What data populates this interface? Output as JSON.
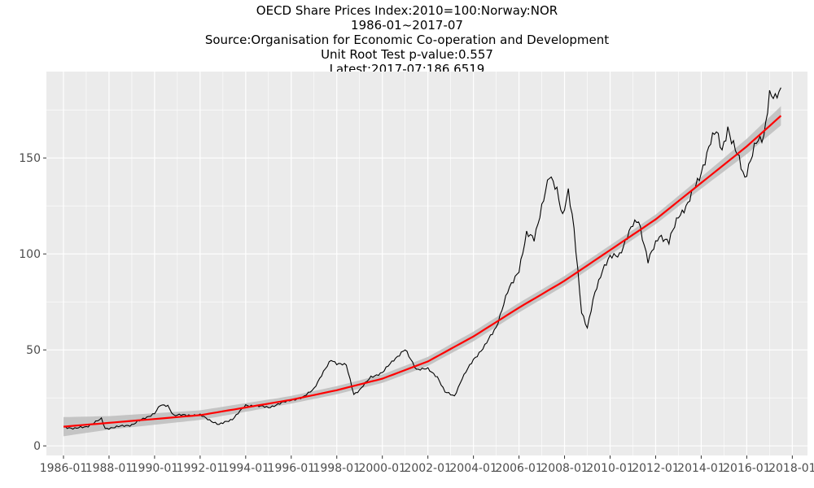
{
  "title_lines": [
    "OECD Share Prices Index:2010=100:Norway:NOR",
    "1986-01~2017-07",
    "Source:Organisation for Economic Co-operation and Development",
    "Unit Root Test p-value:0.557",
    "Latest:2017-07:186.6519"
  ],
  "chart_data": {
    "type": "line",
    "title": "OECD Share Prices Index:2010=100:Norway:NOR",
    "subtitle": "1986-01~2017-07",
    "xlabel": "",
    "ylabel": "",
    "xlim": [
      "1985-04",
      "2018-09"
    ],
    "ylim": [
      -5,
      195
    ],
    "x_ticks": [
      "1986-01",
      "1988-01",
      "1990-01",
      "1992-01",
      "1994-01",
      "1996-01",
      "1998-01",
      "2000-01",
      "2002-01",
      "2004-01",
      "2006-01",
      "2008-01",
      "2010-01",
      "2012-01",
      "2014-01",
      "2016-01",
      "2018-01"
    ],
    "y_ticks": [
      0,
      50,
      100,
      150
    ],
    "grid": true,
    "colors": {
      "panel": "#ebebeb",
      "grid": "#ffffff",
      "series": "#000000",
      "trend": "#ff0000",
      "band": "#bdbdbd"
    },
    "series": [
      {
        "kind": "index",
        "points": [
          [
            "1986-01",
            10
          ],
          [
            "1986-07",
            9
          ],
          [
            "1987-01",
            10
          ],
          [
            "1987-07",
            13
          ],
          [
            "1987-09",
            14
          ],
          [
            "1987-11",
            9
          ],
          [
            "1988-06",
            10
          ],
          [
            "1989-01",
            11
          ],
          [
            "1989-07",
            14
          ],
          [
            "1990-01",
            17
          ],
          [
            "1990-04",
            21
          ],
          [
            "1990-08",
            21
          ],
          [
            "1990-11",
            16
          ],
          [
            "1991-06",
            16
          ],
          [
            "1992-01",
            16
          ],
          [
            "1992-07",
            13
          ],
          [
            "1992-11",
            11
          ],
          [
            "1993-06",
            14
          ],
          [
            "1994-01",
            21
          ],
          [
            "1994-06",
            21
          ],
          [
            "1995-01",
            20
          ],
          [
            "1995-07",
            22
          ],
          [
            "1996-01",
            24
          ],
          [
            "1996-07",
            25
          ],
          [
            "1997-01",
            30
          ],
          [
            "1997-07",
            40
          ],
          [
            "1997-10",
            45
          ],
          [
            "1998-01",
            43
          ],
          [
            "1998-06",
            42
          ],
          [
            "1998-10",
            27
          ],
          [
            "1999-01",
            29
          ],
          [
            "1999-07",
            36
          ],
          [
            "2000-01",
            38
          ],
          [
            "2000-07",
            45
          ],
          [
            "2001-01",
            50
          ],
          [
            "2001-07",
            40
          ],
          [
            "2002-01",
            40
          ],
          [
            "2002-06",
            36
          ],
          [
            "2002-10",
            28
          ],
          [
            "2003-03",
            26
          ],
          [
            "2003-07",
            35
          ],
          [
            "2004-01",
            45
          ],
          [
            "2004-07",
            52
          ],
          [
            "2005-01",
            62
          ],
          [
            "2005-07",
            80
          ],
          [
            "2006-01",
            92
          ],
          [
            "2006-05",
            110
          ],
          [
            "2006-09",
            108
          ],
          [
            "2007-01",
            125
          ],
          [
            "2007-05",
            140
          ],
          [
            "2007-09",
            134
          ],
          [
            "2007-12",
            120
          ],
          [
            "2008-03",
            132
          ],
          [
            "2008-06",
            113
          ],
          [
            "2008-10",
            70
          ],
          [
            "2009-01",
            61
          ],
          [
            "2009-05",
            80
          ],
          [
            "2009-09",
            92
          ],
          [
            "2010-01",
            98
          ],
          [
            "2010-06",
            100
          ],
          [
            "2011-01",
            115
          ],
          [
            "2011-04",
            118
          ],
          [
            "2011-09",
            96
          ],
          [
            "2012-03",
            110
          ],
          [
            "2012-08",
            106
          ],
          [
            "2013-01",
            120
          ],
          [
            "2013-06",
            126
          ],
          [
            "2013-12",
            140
          ],
          [
            "2014-06",
            158
          ],
          [
            "2014-09",
            164
          ],
          [
            "2014-12",
            155
          ],
          [
            "2015-03",
            165
          ],
          [
            "2015-05",
            158
          ],
          [
            "2015-09",
            150
          ],
          [
            "2015-12",
            140
          ],
          [
            "2016-03",
            148
          ],
          [
            "2016-06",
            158
          ],
          [
            "2016-10",
            162
          ],
          [
            "2017-01",
            183
          ],
          [
            "2017-04",
            180
          ],
          [
            "2017-07",
            186.6519
          ]
        ]
      },
      {
        "kind": "trend",
        "points": [
          [
            "1986-01",
            10
          ],
          [
            "1988-01",
            12
          ],
          [
            "1990-01",
            14
          ],
          [
            "1992-01",
            16
          ],
          [
            "1994-01",
            20
          ],
          [
            "1996-01",
            24
          ],
          [
            "1998-01",
            29
          ],
          [
            "2000-01",
            35
          ],
          [
            "2002-01",
            44
          ],
          [
            "2004-01",
            57
          ],
          [
            "2006-01",
            72
          ],
          [
            "2008-01",
            86
          ],
          [
            "2010-01",
            102
          ],
          [
            "2012-01",
            118
          ],
          [
            "2014-01",
            137
          ],
          [
            "2016-01",
            156
          ],
          [
            "2017-07",
            172
          ]
        ],
        "band_halfwidth": [
          [
            "1986-01",
            5
          ],
          [
            "1988-01",
            3.5
          ],
          [
            "1992-01",
            2.5
          ],
          [
            "1996-01",
            2
          ],
          [
            "2000-01",
            2.2
          ],
          [
            "2004-01",
            2.5
          ],
          [
            "2008-01",
            2.5
          ],
          [
            "2012-01",
            2.5
          ],
          [
            "2014-01",
            3
          ],
          [
            "2016-01",
            4
          ],
          [
            "2017-07",
            5
          ]
        ]
      }
    ]
  }
}
